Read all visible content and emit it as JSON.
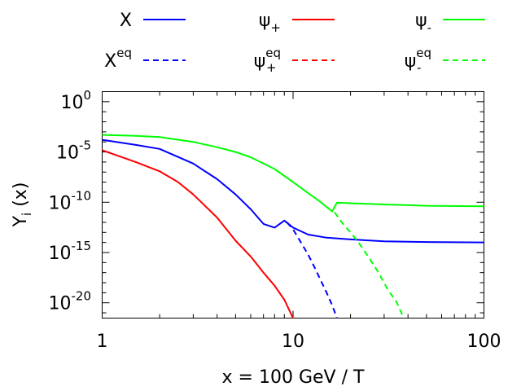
{
  "chart_data": {
    "type": "line",
    "xlabel": "x = 100 GeV / T",
    "ylabel": {
      "base": "Y",
      "sub": "i",
      "rest": " (x)"
    },
    "xlim": [
      1,
      100
    ],
    "ylim": [
      3e-22,
      10.0
    ],
    "xscale": "log",
    "yscale": "log",
    "x_ticks": [
      {
        "value": 1,
        "label": "1"
      },
      {
        "value": 10,
        "label": "10"
      },
      {
        "value": 100,
        "label": "100"
      }
    ],
    "y_ticks": [
      {
        "value": 1.0,
        "base": "10",
        "exp": "0"
      },
      {
        "value": 1e-05,
        "base": "10",
        "exp": "-5"
      },
      {
        "value": 1e-10,
        "base": "10",
        "exp": "-10"
      },
      {
        "value": 1e-15,
        "base": "10",
        "exp": "-15"
      },
      {
        "value": 1e-20,
        "base": "10",
        "exp": "-20"
      }
    ],
    "legend_position": "top",
    "series": [
      {
        "key": "chi",
        "legend": {
          "base": "X",
          "sup": "",
          "sub": ""
        },
        "color": "#0000ff",
        "dash": "solid",
        "points": [
          [
            1,
            0.00016
          ],
          [
            1.5,
            5e-05
          ],
          [
            2,
            2e-05
          ],
          [
            3,
            7e-07
          ],
          [
            4,
            2e-08
          ],
          [
            5,
            6e-10
          ],
          [
            6,
            2e-11
          ],
          [
            7,
            7e-13
          ],
          [
            8,
            3e-13
          ],
          [
            9,
            1.5e-12
          ],
          [
            10,
            3e-13
          ],
          [
            12,
            6e-14
          ],
          [
            15,
            3e-14
          ],
          [
            20,
            2e-14
          ],
          [
            30,
            1.3e-14
          ],
          [
            50,
            1.1e-14
          ],
          [
            100,
            1e-14
          ]
        ]
      },
      {
        "key": "chi-eq",
        "legend": {
          "base": "X",
          "sup": "eq",
          "sub": ""
        },
        "color": "#0000ff",
        "dash": "dashed",
        "points": [
          [
            9.3,
            1e-12
          ],
          [
            10,
            2e-13
          ],
          [
            11,
            1e-14
          ],
          [
            12,
            6e-16
          ],
          [
            13,
            3e-17
          ],
          [
            14,
            1.5e-18
          ],
          [
            15,
            1e-19
          ],
          [
            16,
            6e-21
          ],
          [
            17,
            3e-22
          ]
        ]
      },
      {
        "key": "psi-plus",
        "legend": {
          "base": "ψ",
          "sup": "",
          "sub": "+"
        },
        "color": "#ff0000",
        "dash": "solid",
        "points": [
          [
            1,
            1.5e-05
          ],
          [
            1.5,
            1e-06
          ],
          [
            2,
            1.2e-07
          ],
          [
            2.5,
            1e-08
          ],
          [
            3,
            6e-10
          ],
          [
            4,
            3e-12
          ],
          [
            5,
            1.5e-14
          ],
          [
            6,
            4e-16
          ],
          [
            7,
            1e-17
          ],
          [
            8,
            5e-19
          ],
          [
            9,
            2e-20
          ],
          [
            10,
            3e-22
          ]
        ]
      },
      {
        "key": "psi-plus-eq",
        "legend": {
          "base": "ψ",
          "sup": "eq",
          "sub": "+"
        },
        "color": "#ff0000",
        "dash": "dashed",
        "points": []
      },
      {
        "key": "psi-minus",
        "legend": {
          "base": "ψ",
          "sup": "",
          "sub": "-"
        },
        "color": "#00ff00",
        "dash": "solid",
        "points": [
          [
            1,
            0.0005
          ],
          [
            1.5,
            0.0004
          ],
          [
            2,
            0.0003
          ],
          [
            3,
            0.0001
          ],
          [
            4,
            3e-05
          ],
          [
            5,
            1e-05
          ],
          [
            6,
            3e-06
          ],
          [
            8,
            2e-07
          ],
          [
            10,
            1e-08
          ],
          [
            12,
            8e-10
          ],
          [
            14,
            1e-10
          ],
          [
            16,
            1.2e-11
          ],
          [
            17,
            9e-11
          ],
          [
            20,
            8e-11
          ],
          [
            30,
            6e-11
          ],
          [
            50,
            4.5e-11
          ],
          [
            100,
            4e-11
          ]
        ]
      },
      {
        "key": "psi-minus-eq",
        "legend": {
          "base": "ψ",
          "sup": "eq",
          "sub": "-"
        },
        "color": "#00ff00",
        "dash": "dashed",
        "points": [
          [
            16.5,
            1e-11
          ],
          [
            18,
            1e-12
          ],
          [
            20,
            1e-13
          ],
          [
            22,
            1e-14
          ],
          [
            25,
            3e-16
          ],
          [
            28,
            1e-17
          ],
          [
            31,
            3e-19
          ],
          [
            35,
            1e-20
          ],
          [
            38,
            3e-22
          ]
        ]
      }
    ]
  }
}
